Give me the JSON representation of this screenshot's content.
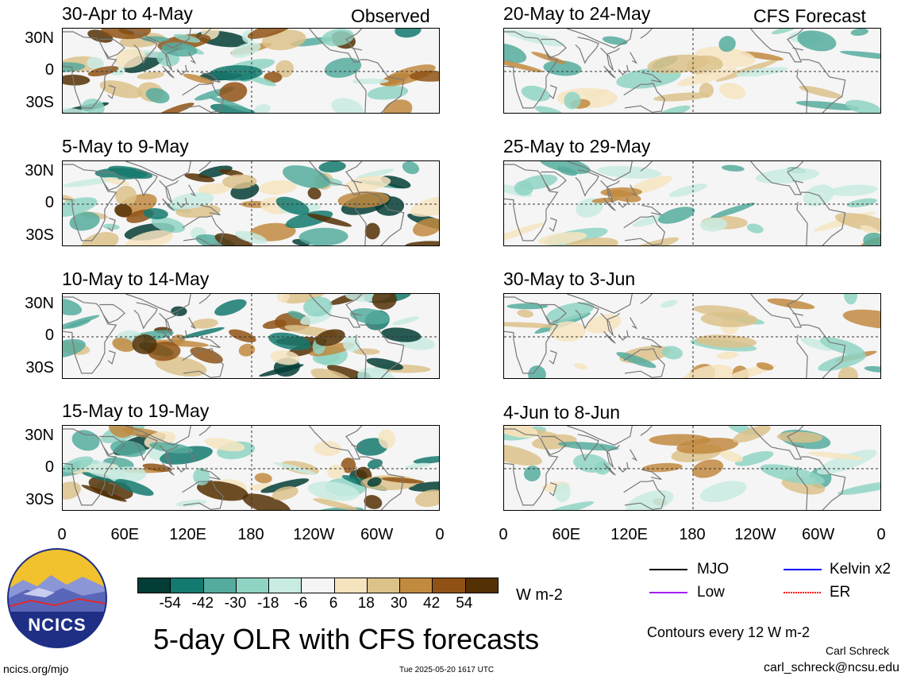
{
  "header": {
    "left_label": "Observed",
    "right_label": "CFS Forecast"
  },
  "panels": [
    {
      "id": "p1",
      "title": "30-Apr to 4-May",
      "type": "observed"
    },
    {
      "id": "p2",
      "title": "5-May to 9-May",
      "type": "observed"
    },
    {
      "id": "p3",
      "title": "10-May to 14-May",
      "type": "observed"
    },
    {
      "id": "p4",
      "title": "15-May to 19-May",
      "type": "observed"
    },
    {
      "id": "p5",
      "title": "20-May to 24-May",
      "type": "forecast"
    },
    {
      "id": "p6",
      "title": "25-May to 29-May",
      "type": "forecast"
    },
    {
      "id": "p7",
      "title": "30-May to 3-Jun",
      "type": "forecast"
    },
    {
      "id": "p8",
      "title": "4-Jun to 8-Jun",
      "type": "forecast"
    }
  ],
  "lat_labels": [
    "30N",
    "0",
    "30S"
  ],
  "lon_labels": [
    "0",
    "60E",
    "120E",
    "180",
    "120W",
    "60W",
    "0"
  ],
  "colorbar": {
    "colors": [
      "#033d36",
      "#14796e",
      "#55ab9d",
      "#8fd3c3",
      "#c8ebe2",
      "#f5f5f5",
      "#f6e4bf",
      "#dcc18a",
      "#c18a3f",
      "#8f5214",
      "#543005"
    ],
    "ticks": [
      "-54",
      "-42",
      "-30",
      "-18",
      "-6",
      "6",
      "18",
      "30",
      "42",
      "54"
    ],
    "units": "W m-2"
  },
  "legend": [
    {
      "label": "MJO",
      "color": "#000000"
    },
    {
      "label": "Kelvin x2",
      "color": "#0000ff"
    },
    {
      "label": "Low",
      "color": "#a020f0"
    },
    {
      "label": "ER",
      "color": "#ff0000"
    }
  ],
  "footer": {
    "logo_text": "NCICS",
    "title": "5-day OLR with CFS forecasts",
    "contours": "Contours every 12 W m-2",
    "author": "Carl Schreck",
    "email": "carl_schreck@ncsu.edu",
    "url": "ncics.org/mjo",
    "timestamp": "Tue 2025-05-20 1617 UTC"
  },
  "colors": {
    "land_outline": "#777777",
    "dry": "#dcc18a",
    "wet": "#14796e"
  }
}
